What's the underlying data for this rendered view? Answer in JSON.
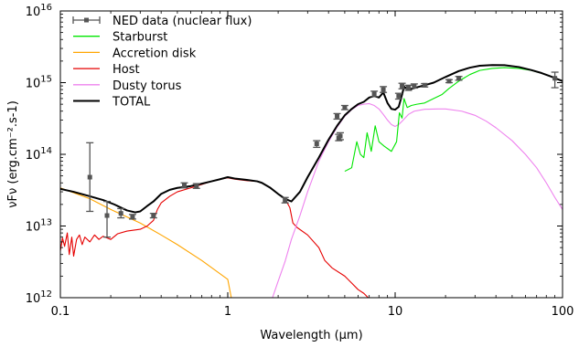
{
  "chart_data": {
    "type": "line",
    "title": "",
    "xlabel": "Wavelength (μm)",
    "ylabel": "νFν (erg.cm⁻².s-1)",
    "xscale": "log",
    "yscale": "log",
    "xlim": [
      0.1,
      100
    ],
    "ylim": [
      1000000000000.0,
      1e+16
    ],
    "grid": false,
    "legend_position": "top-left",
    "xticks": [
      {
        "value": 0.1,
        "label": "0.1"
      },
      {
        "value": 1,
        "label": "1"
      },
      {
        "value": 10,
        "label": "10"
      },
      {
        "value": 100,
        "label": "100"
      }
    ],
    "yticks": [
      {
        "value": 1000000000000.0,
        "base": "10",
        "exp": "12"
      },
      {
        "value": 10000000000000.0,
        "base": "10",
        "exp": "13"
      },
      {
        "value": 100000000000000.0,
        "base": "10",
        "exp": "14"
      },
      {
        "value": 1000000000000000.0,
        "base": "10",
        "exp": "15"
      },
      {
        "value": 1e+16,
        "base": "10",
        "exp": "16"
      }
    ],
    "series": [
      {
        "name": "NED data (nuclear flux)",
        "kind": "errorbar",
        "color": "#555555",
        "points": [
          {
            "x": 0.15,
            "y": 48000000000000.0,
            "ylo": 16000000000000.0,
            "yhi": 145000000000000.0
          },
          {
            "x": 0.19,
            "y": 14000000000000.0,
            "ylo": 7000000000000.0,
            "yhi": 22000000000000.0
          },
          {
            "x": 0.23,
            "y": 15000000000000.0,
            "ylo": 13000000000000.0,
            "yhi": 17500000000000.0
          },
          {
            "x": 0.27,
            "y": 13500000000000.0,
            "ylo": 12500000000000.0,
            "yhi": 14500000000000.0
          },
          {
            "x": 0.36,
            "y": 14000000000000.0,
            "ylo": 13000000000000.0,
            "yhi": 15000000000000.0
          },
          {
            "x": 0.55,
            "y": 37000000000000.0,
            "ylo": 34000000000000.0,
            "yhi": 40000000000000.0
          },
          {
            "x": 0.65,
            "y": 36000000000000.0,
            "ylo": 33500000000000.0,
            "yhi": 39000000000000.0
          },
          {
            "x": 2.2,
            "y": 23000000000000.0,
            "ylo": 21000000000000.0,
            "yhi": 25000000000000.0
          },
          {
            "x": 3.4,
            "y": 140000000000000.0,
            "ylo": 125000000000000.0,
            "yhi": 155000000000000.0
          },
          {
            "x": 4.5,
            "y": 340000000000000.0,
            "ylo": 310000000000000.0,
            "yhi": 370000000000000.0
          },
          {
            "x": 4.6,
            "y": 170000000000000.0,
            "ylo": 155000000000000.0,
            "yhi": 190000000000000.0
          },
          {
            "x": 4.7,
            "y": 180000000000000.0,
            "ylo": 160000000000000.0,
            "yhi": 200000000000000.0
          },
          {
            "x": 5.0,
            "y": 450000000000000.0,
            "ylo": 420000000000000.0,
            "yhi": 480000000000000.0
          },
          {
            "x": 7.5,
            "y": 700000000000000.0,
            "ylo": 640000000000000.0,
            "yhi": 760000000000000.0
          },
          {
            "x": 8.5,
            "y": 800000000000000.0,
            "ylo": 730000000000000.0,
            "yhi": 880000000000000.0
          },
          {
            "x": 10.5,
            "y": 650000000000000.0,
            "ylo": 590000000000000.0,
            "yhi": 710000000000000.0
          },
          {
            "x": 11.0,
            "y": 900000000000000.0,
            "ylo": 820000000000000.0,
            "yhi": 980000000000000.0
          },
          {
            "x": 12.0,
            "y": 850000000000000.0,
            "ylo": 780000000000000.0,
            "yhi": 920000000000000.0
          },
          {
            "x": 13.0,
            "y": 900000000000000.0,
            "ylo": 840000000000000.0,
            "yhi": 960000000000000.0
          },
          {
            "x": 15.0,
            "y": 920000000000000.0,
            "ylo": 870000000000000.0,
            "yhi": 970000000000000.0
          },
          {
            "x": 21.0,
            "y": 1050000000000000.0,
            "ylo": 1000000000000000.0,
            "yhi": 1100000000000000.0
          },
          {
            "x": 24.0,
            "y": 1150000000000000.0,
            "ylo": 1080000000000000.0,
            "yhi": 1220000000000000.0
          },
          {
            "x": 90.0,
            "y": 1150000000000000.0,
            "ylo": 850000000000000.0,
            "yhi": 1400000000000000.0
          }
        ]
      },
      {
        "name": "Starburst",
        "kind": "line",
        "color": "#00e600",
        "points": [
          [
            5.0,
            58000000000000.0
          ],
          [
            5.5,
            65000000000000.0
          ],
          [
            5.9,
            150000000000000.0
          ],
          [
            6.2,
            100000000000000.0
          ],
          [
            6.5,
            90000000000000.0
          ],
          [
            6.8,
            200000000000000.0
          ],
          [
            7.2,
            110000000000000.0
          ],
          [
            7.6,
            250000000000000.0
          ],
          [
            8.0,
            150000000000000.0
          ],
          [
            8.6,
            130000000000000.0
          ],
          [
            9.5,
            110000000000000.0
          ],
          [
            10.2,
            150000000000000.0
          ],
          [
            10.6,
            380000000000000.0
          ],
          [
            11.0,
            320000000000000.0
          ],
          [
            11.3,
            600000000000000.0
          ],
          [
            11.8,
            450000000000000.0
          ],
          [
            12.5,
            480000000000000.0
          ],
          [
            13.5,
            500000000000000.0
          ],
          [
            15,
            520000000000000.0
          ],
          [
            17,
            600000000000000.0
          ],
          [
            19,
            680000000000000.0
          ],
          [
            21,
            830000000000000.0
          ],
          [
            24,
            1050000000000000.0
          ],
          [
            28,
            1300000000000000.0
          ],
          [
            32,
            1480000000000000.0
          ],
          [
            38,
            1580000000000000.0
          ],
          [
            45,
            1620000000000000.0
          ],
          [
            55,
            1580000000000000.0
          ],
          [
            65,
            1480000000000000.0
          ],
          [
            75,
            1350000000000000.0
          ],
          [
            85,
            1220000000000000.0
          ],
          [
            100,
            1050000000000000.0
          ]
        ]
      },
      {
        "name": "Accretion disk",
        "kind": "line",
        "color": "#ffa500",
        "points": [
          [
            0.1,
            34000000000000.0
          ],
          [
            0.15,
            24000000000000.0
          ],
          [
            0.2,
            17000000000000.0
          ],
          [
            0.3,
            11000000000000.0
          ],
          [
            0.4,
            7500000000000.0
          ],
          [
            0.5,
            5500000000000.0
          ],
          [
            0.7,
            3300000000000.0
          ],
          [
            1.0,
            1800000000000.0
          ],
          [
            1.05,
            1000000000000.0
          ]
        ]
      },
      {
        "name": "Host",
        "kind": "line",
        "color": "#e60000",
        "points": [
          [
            0.1,
            4500000000000.0
          ],
          [
            0.103,
            6800000000000.0
          ],
          [
            0.106,
            5200000000000.0
          ],
          [
            0.11,
            8000000000000.0
          ],
          [
            0.113,
            4000000000000.0
          ],
          [
            0.117,
            7000000000000.0
          ],
          [
            0.12,
            3800000000000.0
          ],
          [
            0.125,
            6500000000000.0
          ],
          [
            0.13,
            7500000000000.0
          ],
          [
            0.135,
            5500000000000.0
          ],
          [
            0.14,
            7000000000000.0
          ],
          [
            0.15,
            6000000000000.0
          ],
          [
            0.16,
            7500000000000.0
          ],
          [
            0.17,
            6500000000000.0
          ],
          [
            0.18,
            7200000000000.0
          ],
          [
            0.2,
            6500000000000.0
          ],
          [
            0.22,
            7800000000000.0
          ],
          [
            0.25,
            8500000000000.0
          ],
          [
            0.3,
            9000000000000.0
          ],
          [
            0.33,
            10000000000000.0
          ],
          [
            0.36,
            12000000000000.0
          ],
          [
            0.38,
            17000000000000.0
          ],
          [
            0.4,
            21000000000000.0
          ],
          [
            0.45,
            26000000000000.0
          ],
          [
            0.5,
            30000000000000.0
          ],
          [
            0.6,
            34000000000000.0
          ],
          [
            0.7,
            38000000000000.0
          ],
          [
            0.8,
            42000000000000.0
          ],
          [
            0.9,
            45000000000000.0
          ],
          [
            1.0,
            47000000000000.0
          ],
          [
            1.1,
            45000000000000.0
          ],
          [
            1.3,
            43000000000000.0
          ],
          [
            1.5,
            42000000000000.0
          ],
          [
            1.6,
            40000000000000.0
          ],
          [
            1.8,
            34000000000000.0
          ],
          [
            2.0,
            28000000000000.0
          ],
          [
            2.2,
            24000000000000.0
          ],
          [
            2.35,
            18000000000000.0
          ],
          [
            2.45,
            11000000000000.0
          ],
          [
            2.6,
            9500000000000.0
          ],
          [
            3.0,
            7500000000000.0
          ],
          [
            3.5,
            5000000000000.0
          ],
          [
            3.8,
            3300000000000.0
          ],
          [
            4.2,
            2600000000000.0
          ],
          [
            5.0,
            2000000000000.0
          ],
          [
            5.5,
            1600000000000.0
          ],
          [
            6.0,
            1300000000000.0
          ],
          [
            6.5,
            1150000000000.0
          ],
          [
            6.9,
            1000000000000.0
          ]
        ]
      },
      {
        "name": "Dusty torus",
        "kind": "line",
        "color": "#ee82ee",
        "points": [
          [
            1.85,
            1000000000000.0
          ],
          [
            2.0,
            1700000000000.0
          ],
          [
            2.2,
            3200000000000.0
          ],
          [
            2.4,
            6500000000000.0
          ],
          [
            2.7,
            14000000000000.0
          ],
          [
            3.0,
            30000000000000.0
          ],
          [
            3.5,
            80000000000000.0
          ],
          [
            4.0,
            150000000000000.0
          ],
          [
            4.5,
            240000000000000.0
          ],
          [
            5.0,
            340000000000000.0
          ],
          [
            5.5,
            420000000000000.0
          ],
          [
            6.0,
            480000000000000.0
          ],
          [
            6.5,
            500000000000000.0
          ],
          [
            7.0,
            510000000000000.0
          ],
          [
            7.5,
            480000000000000.0
          ],
          [
            8.0,
            430000000000000.0
          ],
          [
            8.5,
            360000000000000.0
          ],
          [
            9.0,
            300000000000000.0
          ],
          [
            9.5,
            260000000000000.0
          ],
          [
            10.0,
            245000000000000.0
          ],
          [
            10.5,
            260000000000000.0
          ],
          [
            11.0,
            290000000000000.0
          ],
          [
            12.0,
            360000000000000.0
          ],
          [
            13.0,
            400000000000000.0
          ],
          [
            15.0,
            425000000000000.0
          ],
          [
            18.0,
            430000000000000.0
          ],
          [
            20.0,
            430000000000000.0
          ],
          [
            25.0,
            400000000000000.0
          ],
          [
            30.0,
            350000000000000.0
          ],
          [
            35.0,
            290000000000000.0
          ],
          [
            40.0,
            235000000000000.0
          ],
          [
            50.0,
            155000000000000.0
          ],
          [
            60.0,
            100000000000000.0
          ],
          [
            70.0,
            65000000000000.0
          ],
          [
            80.0,
            40000000000000.0
          ],
          [
            90.0,
            25000000000000.0
          ],
          [
            100.0,
            17000000000000.0
          ]
        ]
      },
      {
        "name": "TOTAL",
        "kind": "line",
        "color": "#000000",
        "points": [
          [
            0.1,
            33000000000000.0
          ],
          [
            0.12,
            30000000000000.0
          ],
          [
            0.15,
            26000000000000.0
          ],
          [
            0.18,
            23000000000000.0
          ],
          [
            0.21,
            20000000000000.0
          ],
          [
            0.25,
            16500000000000.0
          ],
          [
            0.28,
            15500000000000.0
          ],
          [
            0.3,
            16000000000000.0
          ],
          [
            0.33,
            19000000000000.0
          ],
          [
            0.36,
            22000000000000.0
          ],
          [
            0.4,
            28000000000000.0
          ],
          [
            0.45,
            32000000000000.0
          ],
          [
            0.5,
            34000000000000.0
          ],
          [
            0.6,
            36000000000000.0
          ],
          [
            0.7,
            39000000000000.0
          ],
          [
            0.8,
            42000000000000.0
          ],
          [
            0.9,
            45000000000000.0
          ],
          [
            1.0,
            48000000000000.0
          ],
          [
            1.1,
            46000000000000.0
          ],
          [
            1.3,
            44000000000000.0
          ],
          [
            1.5,
            42000000000000.0
          ],
          [
            1.6,
            40000000000000.0
          ],
          [
            1.8,
            34000000000000.0
          ],
          [
            2.0,
            28000000000000.0
          ],
          [
            2.2,
            24000000000000.0
          ],
          [
            2.4,
            22000000000000.0
          ],
          [
            2.7,
            30000000000000.0
          ],
          [
            3.0,
            48000000000000.0
          ],
          [
            3.5,
            90000000000000.0
          ],
          [
            4.0,
            160000000000000.0
          ],
          [
            4.5,
            250000000000000.0
          ],
          [
            5.0,
            350000000000000.0
          ],
          [
            5.5,
            430000000000000.0
          ],
          [
            6.0,
            500000000000000.0
          ],
          [
            6.5,
            540000000000000.0
          ],
          [
            7.0,
            620000000000000.0
          ],
          [
            7.5,
            650000000000000.0
          ],
          [
            8.0,
            620000000000000.0
          ],
          [
            8.5,
            730000000000000.0
          ],
          [
            9.0,
            520000000000000.0
          ],
          [
            9.5,
            430000000000000.0
          ],
          [
            10.0,
            420000000000000.0
          ],
          [
            10.5,
            460000000000000.0
          ],
          [
            11.0,
            680000000000000.0
          ],
          [
            11.3,
            880000000000000.0
          ],
          [
            12.0,
            800000000000000.0
          ],
          [
            13.0,
            840000000000000.0
          ],
          [
            15.0,
            920000000000000.0
          ],
          [
            17.0,
            1000000000000000.0
          ],
          [
            20.0,
            1200000000000000.0
          ],
          [
            24.0,
            1450000000000000.0
          ],
          [
            28.0,
            1620000000000000.0
          ],
          [
            32.0,
            1720000000000000.0
          ],
          [
            38.0,
            1760000000000000.0
          ],
          [
            45.0,
            1750000000000000.0
          ],
          [
            55.0,
            1650000000000000.0
          ],
          [
            65.0,
            1500000000000000.0
          ],
          [
            75.0,
            1360000000000000.0
          ],
          [
            85.0,
            1220000000000000.0
          ],
          [
            100.0,
            1050000000000000.0
          ]
        ]
      }
    ]
  }
}
